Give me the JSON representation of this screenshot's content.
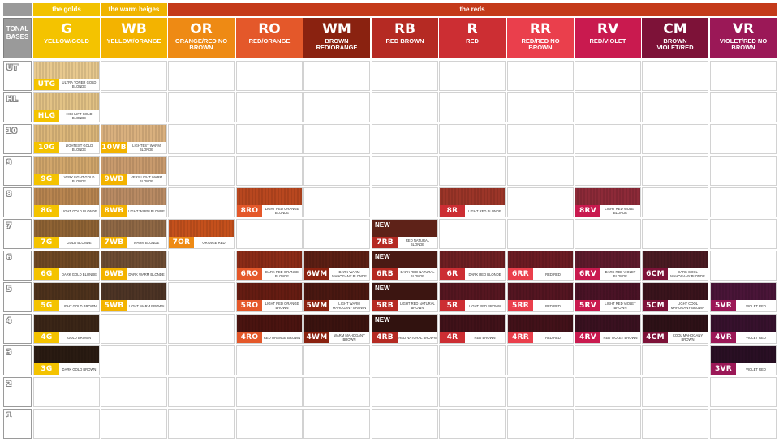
{
  "groups": [
    {
      "label": "the golds",
      "color": "#f2c200",
      "col_start": 0,
      "col_end": 0
    },
    {
      "label": "the warm beiges",
      "color": "#f0b400",
      "col_start": 1,
      "col_end": 1
    },
    {
      "label": "the reds",
      "color": "#c43a1a",
      "col_start": 2,
      "col_end": 10
    }
  ],
  "tonal_header": "TONAL BASES",
  "columns": [
    {
      "code": "G",
      "desc": "YELLOW/GOLD",
      "color": "#f4c300"
    },
    {
      "code": "WB",
      "desc": "YELLOW/ORANGE",
      "color": "#f3b300"
    },
    {
      "code": "OR",
      "desc": "ORANGE/RED NO BROWN",
      "color": "#ee8a14"
    },
    {
      "code": "RO",
      "desc": "RED/ORANGE",
      "color": "#e4582a"
    },
    {
      "code": "WM",
      "desc": "BROWN RED/ORANGE",
      "color": "#8a2210"
    },
    {
      "code": "RB",
      "desc": "RED BROWN",
      "color": "#b52a23"
    },
    {
      "code": "R",
      "desc": "RED",
      "color": "#cc2e33"
    },
    {
      "code": "RR",
      "desc": "RED/RED NO BROWN",
      "color": "#ea3f4c"
    },
    {
      "code": "RV",
      "desc": "RED/VIOLET",
      "color": "#c91a4f"
    },
    {
      "code": "CM",
      "desc": "BROWN VIOLET/RED",
      "color": "#7d1238"
    },
    {
      "code": "VR",
      "desc": "VIOLET/RED NO BROWN",
      "color": "#9b1857"
    }
  ],
  "rows": [
    "UT",
    "HL",
    "10",
    "9",
    "8",
    "7",
    "6",
    "5",
    "4",
    "3",
    "2",
    "1"
  ],
  "swatches": [
    {
      "row": 0,
      "col": 0,
      "code": "UTG",
      "desc": "ULTRA TONER GOLD BLONDE",
      "hair": "#e8c98e",
      "tag": "#f4c300"
    },
    {
      "row": 1,
      "col": 0,
      "code": "HLG",
      "desc": "HIGHLIFT GOLD BLONDE",
      "hair": "#e2c285",
      "tag": "#f4c300"
    },
    {
      "row": 2,
      "col": 0,
      "code": "10G",
      "desc": "LIGHTEST GOLD BLONDE",
      "hair": "#dcb77a",
      "tag": "#f4c300"
    },
    {
      "row": 2,
      "col": 1,
      "code": "10WB",
      "desc": "LIGHTEST WARM BLONDE",
      "hair": "#d9b07e",
      "tag": "#f3b300"
    },
    {
      "row": 3,
      "col": 0,
      "code": "9G",
      "desc": "VERY LIGHT GOLD BLONDE",
      "hair": "#d1a66b",
      "tag": "#f4c300"
    },
    {
      "row": 3,
      "col": 1,
      "code": "9WB",
      "desc": "VERY LIGHT WARM BLONDE",
      "hair": "#c89a6d",
      "tag": "#f3b300"
    },
    {
      "row": 4,
      "col": 0,
      "code": "8G",
      "desc": "LIGHT GOLD BLONDE",
      "hair": "#b88550",
      "tag": "#f4c300"
    },
    {
      "row": 4,
      "col": 1,
      "code": "8WB",
      "desc": "LIGHT WARM BLONDE",
      "hair": "#b88a63",
      "tag": "#f3b300"
    },
    {
      "row": 4,
      "col": 3,
      "code": "8RO",
      "desc": "LIGHT RED ORANGE BLONDE",
      "hair": "#b8471f",
      "tag": "#e4582a"
    },
    {
      "row": 4,
      "col": 6,
      "code": "8R",
      "desc": "LIGHT RED BLONDE",
      "hair": "#9b3528",
      "tag": "#cc2e33"
    },
    {
      "row": 4,
      "col": 8,
      "code": "8RV",
      "desc": "LIGHT RED VIOLET BLONDE",
      "hair": "#8d2a38",
      "tag": "#c91a4f"
    },
    {
      "row": 5,
      "col": 0,
      "code": "7G",
      "desc": "GOLD BLONDE",
      "hair": "#8f6334",
      "tag": "#f4c300"
    },
    {
      "row": 5,
      "col": 1,
      "code": "7WB",
      "desc": "WARM BLONDE",
      "hair": "#8f6845",
      "tag": "#f3b300"
    },
    {
      "row": 5,
      "col": 2,
      "code": "7OR",
      "desc": "ORANGE RED",
      "hair": "#c4501c",
      "tag": "#ee8a14"
    },
    {
      "row": 5,
      "col": 5,
      "code": "7RB",
      "desc": "RED NATURAL BLONDE",
      "hair": "#5e2218",
      "tag": "#b52a23",
      "new": "NEW"
    },
    {
      "row": 6,
      "col": 0,
      "code": "6G",
      "desc": "DARK GOLD BLONDE",
      "hair": "#6f4824",
      "tag": "#f4c300"
    },
    {
      "row": 6,
      "col": 1,
      "code": "6WB",
      "desc": "DARK WARM BLONDE",
      "hair": "#6d4c33",
      "tag": "#f3b300"
    },
    {
      "row": 6,
      "col": 3,
      "code": "6RO",
      "desc": "DARK RED ORANGE BLONDE",
      "hair": "#8a2b17",
      "tag": "#e4582a"
    },
    {
      "row": 6,
      "col": 4,
      "code": "6WM",
      "desc": "DARK WARM MAHOGANY BLONDE",
      "hair": "#5c1f14",
      "tag": "#8a2210"
    },
    {
      "row": 6,
      "col": 5,
      "code": "6RB",
      "desc": "DARK RED NATURAL BLONDE",
      "hair": "#4a1a14",
      "tag": "#b52a23",
      "new": "NEW"
    },
    {
      "row": 6,
      "col": 6,
      "code": "6R",
      "desc": "DARK RED BLONDE",
      "hair": "#6e1f22",
      "tag": "#cc2e33"
    },
    {
      "row": 6,
      "col": 7,
      "code": "6RR",
      "desc": "RED RED",
      "hair": "#6b1b22",
      "tag": "#ea3f4c"
    },
    {
      "row": 6,
      "col": 8,
      "code": "6RV",
      "desc": "DARK RED VIOLET BLONDE",
      "hair": "#5e1a2c",
      "tag": "#c91a4f"
    },
    {
      "row": 6,
      "col": 9,
      "code": "6CM",
      "desc": "DARK COOL MAHOGANY BLONDE",
      "hair": "#4a1a22",
      "tag": "#7d1238"
    },
    {
      "row": 7,
      "col": 0,
      "code": "5G",
      "desc": "LIGHT GOLD BROWN",
      "hair": "#4e321c",
      "tag": "#f4c300"
    },
    {
      "row": 7,
      "col": 1,
      "code": "5WB",
      "desc": "LIGHT WARM BROWN",
      "hair": "#4d3425",
      "tag": "#f3b300"
    },
    {
      "row": 7,
      "col": 3,
      "code": "5RO",
      "desc": "LIGHT RED ORANGE BROWN",
      "hair": "#651c12",
      "tag": "#e4582a"
    },
    {
      "row": 7,
      "col": 4,
      "code": "5WM",
      "desc": "LIGHT WARM MAHOGANY BROWN",
      "hair": "#4a1811",
      "tag": "#8a2210"
    },
    {
      "row": 7,
      "col": 5,
      "code": "5RB",
      "desc": "LIGHT RED NATURAL BROWN",
      "hair": "#3c1511",
      "tag": "#b52a23",
      "new": "NEW"
    },
    {
      "row": 7,
      "col": 6,
      "code": "5R",
      "desc": "LIGHT RED BROWN",
      "hair": "#551620",
      "tag": "#cc2e33"
    },
    {
      "row": 7,
      "col": 7,
      "code": "5RR",
      "desc": "RED RED",
      "hair": "#541521",
      "tag": "#ea3f4c"
    },
    {
      "row": 7,
      "col": 8,
      "code": "5RV",
      "desc": "LIGHT RED VIOLET BROWN",
      "hair": "#4a1326",
      "tag": "#c91a4f"
    },
    {
      "row": 7,
      "col": 9,
      "code": "5CM",
      "desc": "LIGHT COOL MAHOGANY BROWN",
      "hair": "#3a141c",
      "tag": "#7d1238"
    },
    {
      "row": 7,
      "col": 10,
      "code": "5VR",
      "desc": "VIOLET RED",
      "hair": "#4a1538",
      "tag": "#9b1857"
    },
    {
      "row": 8,
      "col": 0,
      "code": "4G",
      "desc": "GOLD BROWN",
      "hair": "#3b2617",
      "tag": "#f4c300"
    },
    {
      "row": 8,
      "col": 3,
      "code": "4RO",
      "desc": "RED ORANGE BROWN",
      "hair": "#4a1410",
      "tag": "#e4582a"
    },
    {
      "row": 8,
      "col": 4,
      "code": "4WM",
      "desc": "WARM MAHOGANY BROWN",
      "hair": "#3b130f",
      "tag": "#8a2210"
    },
    {
      "row": 8,
      "col": 5,
      "code": "4RB",
      "desc": "RED NATURAL BROWN",
      "hair": "#31120f",
      "tag": "#b52a23",
      "new": "NEW"
    },
    {
      "row": 8,
      "col": 6,
      "code": "4R",
      "desc": "RED BROWN",
      "hair": "#411219",
      "tag": "#cc2e33"
    },
    {
      "row": 8,
      "col": 7,
      "code": "4RR",
      "desc": "RED RED",
      "hair": "#421119",
      "tag": "#ea3f4c"
    },
    {
      "row": 8,
      "col": 8,
      "code": "4RV",
      "desc": "RED VIOLET BROWN",
      "hair": "#3a1120",
      "tag": "#c91a4f"
    },
    {
      "row": 8,
      "col": 9,
      "code": "4CM",
      "desc": "COOL MAHOGANY BROWN",
      "hair": "#2e1117",
      "tag": "#7d1238"
    },
    {
      "row": 8,
      "col": 10,
      "code": "4VR",
      "desc": "VIOLET RED",
      "hair": "#37112d",
      "tag": "#9b1857"
    },
    {
      "row": 9,
      "col": 0,
      "code": "3G",
      "desc": "DARK GOLD BROWN",
      "hair": "#2a1b12",
      "tag": "#f4c300"
    },
    {
      "row": 9,
      "col": 10,
      "code": "3VR",
      "desc": "VIOLET RED",
      "hair": "#2a0f24",
      "tag": "#9b1857"
    }
  ]
}
